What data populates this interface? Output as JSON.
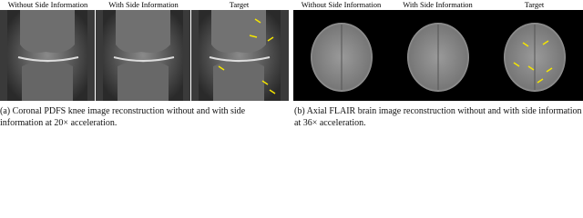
{
  "panels": [
    {
      "labels": [
        "Without Side Information",
        "With Side Information",
        "Target"
      ],
      "caption": "(a) Coronal PDFS knee image reconstruction without and with side information at 20× acceleration."
    },
    {
      "labels": [
        "Without Side Information",
        "With Side Information",
        "Target"
      ],
      "caption": "(b) Axial FLAIR brain image reconstruction without and with side information at 36× acceleration."
    }
  ]
}
